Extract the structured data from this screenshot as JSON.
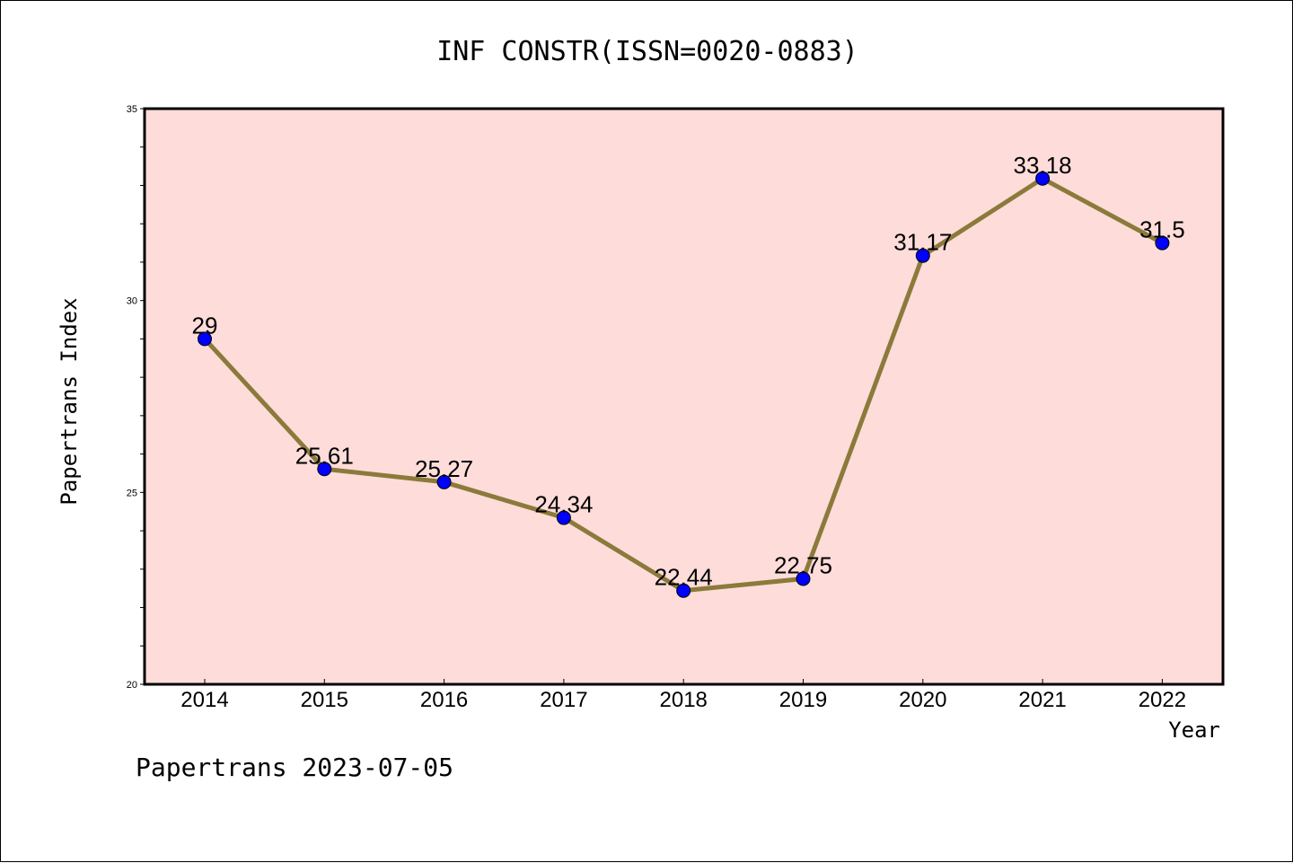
{
  "chart_data": {
    "type": "line",
    "title": "INF CONSTR(ISSN=0020-0883)",
    "xlabel": "Year",
    "ylabel": "Papertrans Index",
    "x": [
      "2014",
      "2015",
      "2016",
      "2017",
      "2018",
      "2019",
      "2020",
      "2021",
      "2022"
    ],
    "series": [
      {
        "values": [
          29,
          25.61,
          25.27,
          24.34,
          22.44,
          22.75,
          31.17,
          33.18,
          31.5
        ],
        "labels": [
          "29",
          "25.61",
          "25.27",
          "24.34",
          "22.44",
          "22.75",
          "31.17",
          "33.18",
          "31.5"
        ]
      }
    ],
    "ylim": [
      20,
      35
    ],
    "yticks": [
      "20",
      "25",
      "30",
      "35"
    ],
    "grid": false,
    "colors": {
      "plot_background": "#fddcda",
      "line": "#8b7a3a",
      "marker": "#0000ff"
    }
  },
  "footer": {
    "text": "Papertrans 2023-07-05"
  }
}
